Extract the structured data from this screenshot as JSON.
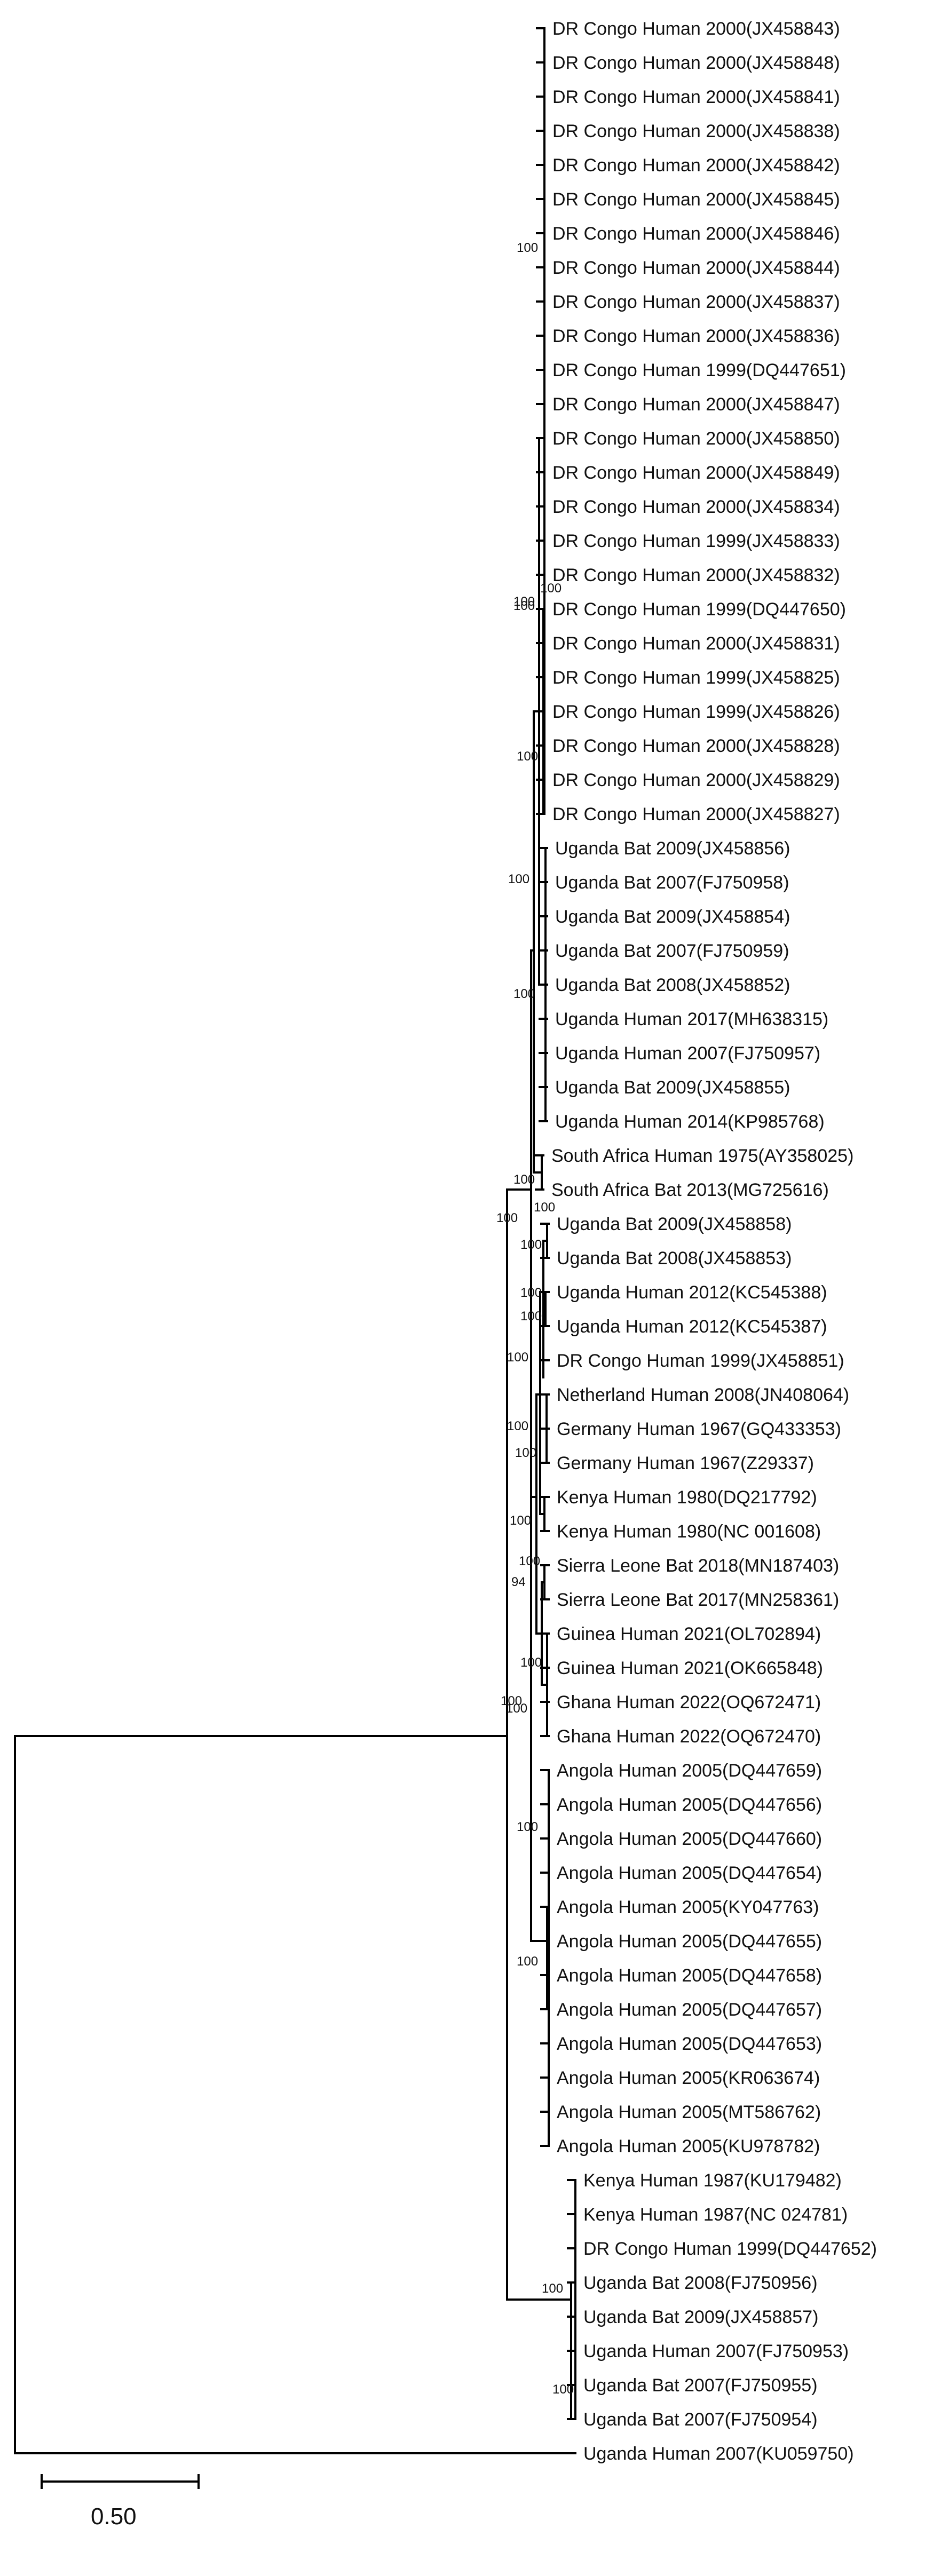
{
  "leaves": [
    "DR Congo Human 2000(JX458843)",
    "DR Congo Human 2000(JX458848)",
    "DR Congo Human 2000(JX458841)",
    "DR Congo Human 2000(JX458838)",
    "DR Congo Human 2000(JX458842)",
    "DR Congo Human 2000(JX458845)",
    "DR Congo Human 2000(JX458846)",
    "DR Congo Human 2000(JX458844)",
    "DR Congo Human 2000(JX458837)",
    "DR Congo Human 2000(JX458836)",
    "DR Congo Human 1999(DQ447651)",
    "DR Congo Human 2000(JX458847)",
    "DR Congo Human 2000(JX458850)",
    "DR Congo Human 2000(JX458849)",
    "DR Congo Human 2000(JX458834)",
    "DR Congo Human 1999(JX458833)",
    "DR Congo Human 2000(JX458832)",
    "DR Congo Human 1999(DQ447650)",
    "DR Congo Human 2000(JX458831)",
    "DR Congo Human 1999(JX458825)",
    "DR Congo Human 1999(JX458826)",
    "DR Congo Human 2000(JX458828)",
    "DR Congo Human 2000(JX458829)",
    "DR Congo Human 2000(JX458827)",
    "Uganda Bat 2009(JX458856)",
    "Uganda Bat 2007(FJ750958)",
    "Uganda Bat 2009(JX458854)",
    "Uganda Bat 2007(FJ750959)",
    "Uganda Bat 2008(JX458852)",
    "Uganda Human 2017(MH638315)",
    "Uganda Human 2007(FJ750957)",
    "Uganda Bat 2009(JX458855)",
    "Uganda Human 2014(KP985768)",
    "South Africa Human 1975(AY358025)",
    "South Africa Bat 2013(MG725616)",
    "Uganda Bat 2009(JX458858)",
    "Uganda Bat 2008(JX458853)",
    "Uganda Human 2012(KC545388)",
    "Uganda Human 2012(KC545387)",
    "DR Congo Human 1999(JX458851)",
    "Netherland Human 2008(JN408064)",
    "Germany Human 1967(GQ433353)",
    "Germany Human 1967(Z29337)",
    "Kenya Human 1980(DQ217792)",
    "Kenya Human 1980(NC 001608)",
    "Sierra Leone Bat 2018(MN187403)",
    "Sierra Leone Bat 2017(MN258361)",
    "Guinea Human 2021(OL702894)",
    "Guinea Human 2021(OK665848)",
    "Ghana Human 2022(OQ672471)",
    "Ghana Human 2022(OQ672470)",
    "Angola Human 2005(DQ447659)",
    "Angola Human 2005(DQ447656)",
    "Angola Human 2005(DQ447660)",
    "Angola Human 2005(DQ447654)",
    "Angola Human 2005(KY047763)",
    "Angola Human 2005(DQ447655)",
    "Angola Human 2005(DQ447658)",
    "Angola Human 2005(DQ447657)",
    "Angola Human 2005(DQ447653)",
    "Angola Human 2005(KR063674)",
    "Angola Human 2005(MT586762)",
    "Angola Human 2005(KU978782)",
    "Kenya Human 1987(KU179482)",
    "Kenya Human 1987(NC 024781)",
    "DR Congo Human 1999(DQ447652)",
    "Uganda Bat 2008(FJ750956)",
    "Uganda Bat 2009(JX458857)",
    "Uganda Human 2007(FJ750953)",
    "Uganda Bat 2007(FJ750955)",
    "Uganda Bat 2007(FJ750954)",
    "Uganda Human 2007(KU059750)"
  ],
  "support_values": [
    "100",
    "100",
    "100",
    "100",
    "100",
    "100",
    "100",
    "100",
    "100",
    "100",
    "100",
    "100",
    "100",
    "100",
    "100",
    "100",
    "94",
    "100",
    "100",
    "100",
    "100",
    "100",
    "100",
    "100",
    "100",
    "100"
  ],
  "scale_bar": {
    "label": "0.50"
  }
}
